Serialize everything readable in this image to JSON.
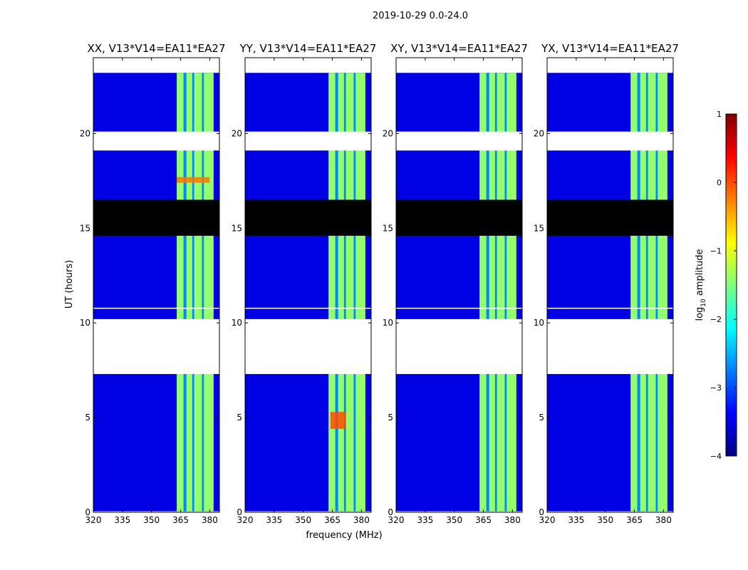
{
  "suptitle": "2019-10-29 0.0-24.0",
  "xlabel": "frequency (MHz)",
  "ylabel": "UT (hours)",
  "colorbar": {
    "label": "log10 amplitude",
    "label_main": "log",
    "label_sub": "10",
    "label_tail": " amplitude",
    "range": [
      -4,
      1
    ],
    "ticks": [
      1,
      0,
      -1,
      -2,
      -3,
      -4
    ],
    "tick_labels": [
      "1",
      "0",
      "−1",
      "−2",
      "−3",
      "−4"
    ],
    "colormap": "jet",
    "colormap_stops": [
      "#00007f",
      "#0000ff",
      "#007fff",
      "#00ffff",
      "#7fff7f",
      "#ffff00",
      "#ff7f00",
      "#ff0000",
      "#7f0000"
    ]
  },
  "chart_data": {
    "type": "heatmap",
    "subtype": "dynamic spectrum (waterfall)",
    "date": "2019-10-29",
    "time_range_hours": [
      0.0,
      24.0
    ],
    "x_unit": "MHz",
    "y_unit": "hours",
    "xlim": [
      320,
      385
    ],
    "ylim": [
      0,
      24
    ],
    "x_ticks": [
      320,
      335,
      350,
      365,
      380
    ],
    "y_ticks": [
      0,
      5,
      10,
      15,
      20
    ],
    "background_level": -3.5,
    "rfi_band": {
      "freq_range": [
        363,
        382
      ],
      "level": -1.4
    },
    "rfi_band_gaps": [
      [
        366.5,
        368
      ],
      [
        371,
        372
      ],
      [
        376,
        377
      ]
    ],
    "gaps_white": [
      [
        7.3,
        10.2
      ],
      [
        19.1,
        20.1
      ],
      [
        10.8,
        10.8
      ]
    ],
    "flagged_black": [
      [
        14.6,
        16.5
      ]
    ],
    "peak_regions": [
      {
        "panel": "YY",
        "time": [
          4.4,
          5.3
        ],
        "freq": [
          364,
          372
        ],
        "level": 0.0
      },
      {
        "panel": "XX",
        "time": [
          17.4,
          17.7
        ],
        "freq": [
          363,
          380
        ],
        "level": -0.2
      }
    ],
    "panels": [
      {
        "title": "XX, V13*V14=EA11*EA27",
        "pol": "XX"
      },
      {
        "title": "YY, V13*V14=EA11*EA27",
        "pol": "YY"
      },
      {
        "title": "XY, V13*V14=EA11*EA27",
        "pol": "XY"
      },
      {
        "title": "YX, V13*V14=EA11*EA27",
        "pol": "YX"
      }
    ]
  }
}
